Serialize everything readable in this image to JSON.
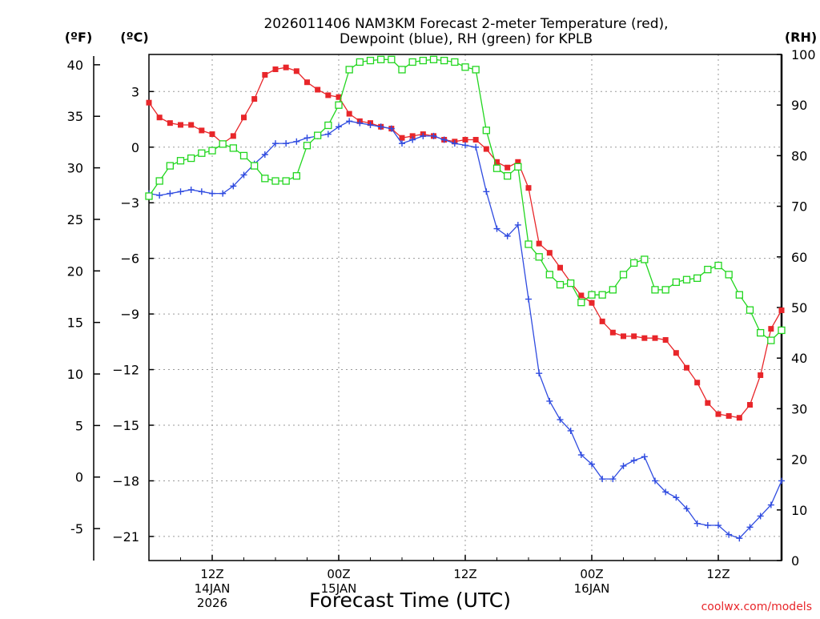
{
  "chart_data": {
    "type": "line",
    "title_line1": "2026011406 NAM3KM Forecast 2-meter Temperature (red),",
    "title_line2": "Dewpoint (blue), RH (green) for KPLB",
    "xlabel": "Forecast Time (UTC)",
    "credit": "coolwx.com/models",
    "unit_f": "(ºF)",
    "unit_c": "(ºC)",
    "unit_rh": "(RH)",
    "forecast_hours": [
      0,
      1,
      2,
      3,
      4,
      5,
      6,
      7,
      8,
      9,
      10,
      11,
      12,
      13,
      14,
      15,
      16,
      17,
      18,
      19,
      20,
      21,
      22,
      23,
      24,
      25,
      26,
      27,
      28,
      29,
      30,
      31,
      32,
      33,
      34,
      35,
      36,
      37,
      38,
      39,
      40,
      41,
      42,
      43,
      44,
      45,
      46,
      47,
      48,
      49,
      50,
      51,
      52,
      53,
      54,
      55,
      56,
      57,
      58,
      59,
      60
    ],
    "xlim": [
      0,
      60
    ],
    "x_ticks": [
      {
        "hour": 6,
        "lines": [
          "12Z",
          "14JAN",
          "2026"
        ]
      },
      {
        "hour": 18,
        "lines": [
          "00Z",
          "15JAN"
        ]
      },
      {
        "hour": 30,
        "lines": [
          "12Z"
        ]
      },
      {
        "hour": 42,
        "lines": [
          "00Z",
          "16JAN"
        ]
      },
      {
        "hour": 54,
        "lines": [
          "12Z"
        ]
      }
    ],
    "y_left_f": {
      "label": "(ºF)",
      "ylim": [
        -8.1,
        41
      ],
      "ticks": [
        "40",
        "35",
        "30",
        "25",
        "20",
        "15",
        "10",
        "5",
        "0",
        "-5"
      ],
      "tick_values": [
        40,
        35,
        30,
        25,
        20,
        15,
        10,
        5,
        0,
        -5
      ]
    },
    "y_left_c": {
      "label": "(ºC)",
      "ylim": [
        -22.3,
        5.0
      ],
      "ticks": [
        "3",
        "0",
        "−3",
        "−6",
        "−9",
        "−12",
        "−15",
        "−18",
        "−21"
      ],
      "tick_values": [
        3,
        0,
        -3,
        -6,
        -9,
        -12,
        -15,
        -18,
        -21
      ]
    },
    "y_right_rh": {
      "label": "(RH)",
      "ylim": [
        0,
        100
      ],
      "ticks": [
        "100",
        "90",
        "80",
        "70",
        "60",
        "50",
        "40",
        "30",
        "20",
        "10",
        "0"
      ],
      "tick_values": [
        100,
        90,
        80,
        70,
        60,
        50,
        40,
        30,
        20,
        10,
        0
      ]
    },
    "series": [
      {
        "name": "Temperature (°C)",
        "axis": "celsius",
        "color": "#e8262a",
        "marker": "filled-square",
        "values": [
          2.4,
          1.6,
          1.3,
          1.2,
          1.2,
          0.9,
          0.7,
          0.2,
          0.6,
          1.6,
          2.6,
          3.9,
          4.2,
          4.3,
          4.1,
          3.5,
          3.1,
          2.8,
          2.7,
          1.8,
          1.4,
          1.3,
          1.1,
          1.0,
          0.5,
          0.6,
          0.7,
          0.6,
          0.4,
          0.3,
          0.4,
          0.4,
          -0.1,
          -0.8,
          -1.1,
          -0.8,
          -2.2,
          -5.2,
          -5.7,
          -6.5,
          -7.3,
          -8.0,
          -8.4,
          -9.4,
          -10.0,
          -10.2,
          -10.2,
          -10.3,
          -10.3,
          -10.4,
          -11.1,
          -11.9,
          -12.7,
          -13.8,
          -14.4,
          -14.5,
          -14.6,
          -13.9,
          -12.3,
          -9.8,
          -8.8
        ]
      },
      {
        "name": "Dewpoint (°C)",
        "axis": "celsius",
        "color": "#2f4be0",
        "marker": "plus",
        "values": [
          -2.5,
          -2.6,
          -2.5,
          -2.4,
          -2.3,
          -2.4,
          -2.5,
          -2.5,
          -2.1,
          -1.5,
          -0.9,
          -0.4,
          0.2,
          0.2,
          0.3,
          0.5,
          0.6,
          0.7,
          1.1,
          1.4,
          1.3,
          1.2,
          1.1,
          1.0,
          0.2,
          0.4,
          0.6,
          0.6,
          0.4,
          0.2,
          0.1,
          0.0,
          -2.4,
          -4.4,
          -4.8,
          -4.2,
          -8.2,
          -12.2,
          -13.7,
          -14.7,
          -15.3,
          -16.6,
          -17.1,
          -17.9,
          -17.9,
          -17.2,
          -16.9,
          -16.7,
          -18.0,
          -18.6,
          -18.9,
          -19.5,
          -20.3,
          -20.4,
          -20.4,
          -20.9,
          -21.1,
          -20.5,
          -19.9,
          -19.3,
          -18.0
        ]
      },
      {
        "name": "Relative Humidity (%)",
        "axis": "rh",
        "color": "#22d61f",
        "marker": "open-square",
        "values": [
          72,
          75,
          78,
          79,
          79.5,
          80.5,
          81,
          82.3,
          81.5,
          80,
          78,
          75.5,
          75,
          75,
          76,
          82,
          84,
          86,
          90,
          97,
          98.5,
          98.8,
          99,
          99,
          97,
          98.5,
          98.8,
          99,
          98.8,
          98.5,
          97.5,
          97,
          85,
          77.5,
          76,
          77.8,
          62.5,
          60,
          56.5,
          54.5,
          54.8,
          51,
          52.5,
          52.5,
          53.5,
          56.5,
          58.8,
          59.5,
          53.5,
          53.5,
          55,
          55.5,
          55.8,
          57.5,
          58.3,
          56.5,
          52.5,
          49.5,
          45,
          43.5,
          45.5
        ]
      }
    ]
  }
}
